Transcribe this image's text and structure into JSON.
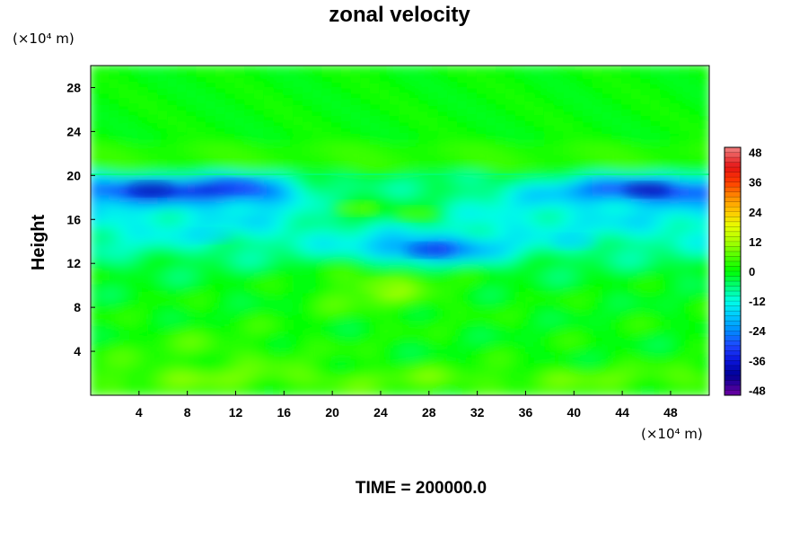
{
  "chart_data": {
    "type": "heatmap",
    "title": "zonal velocity",
    "ylabel": "Height",
    "x_unit_label": "(×10⁴ m)",
    "y_unit_label": "(×10⁴ m)",
    "footer": "TIME = 200000.0",
    "x_ticks": [
      4,
      8,
      12,
      16,
      20,
      24,
      28,
      32,
      36,
      40,
      44,
      48
    ],
    "y_ticks": [
      4,
      8,
      12,
      16,
      20,
      24,
      28
    ],
    "xlim": [
      0,
      51.2
    ],
    "ylim": [
      0,
      30
    ],
    "colorbar": {
      "range": [
        -50,
        50
      ],
      "ticks": [
        48,
        36,
        24,
        12,
        0,
        -12,
        -24,
        -36,
        -48
      ]
    },
    "features": [
      {
        "x": 5,
        "y": 18.8,
        "value": -40
      },
      {
        "x": 12,
        "y": 19.0,
        "value": -30
      },
      {
        "x": 46,
        "y": 18.7,
        "value": -42
      },
      {
        "x": 28,
        "y": 13.2,
        "value": -35
      },
      {
        "x": 22,
        "y": 17.0,
        "value": 10
      },
      {
        "x": 27,
        "y": 16.5,
        "value": 8
      },
      {
        "x": 24,
        "y": 10.0,
        "value": 8
      },
      {
        "x": 10,
        "y": 14.5,
        "value": -18
      },
      {
        "x": 40,
        "y": 14.0,
        "value": -18
      }
    ]
  }
}
